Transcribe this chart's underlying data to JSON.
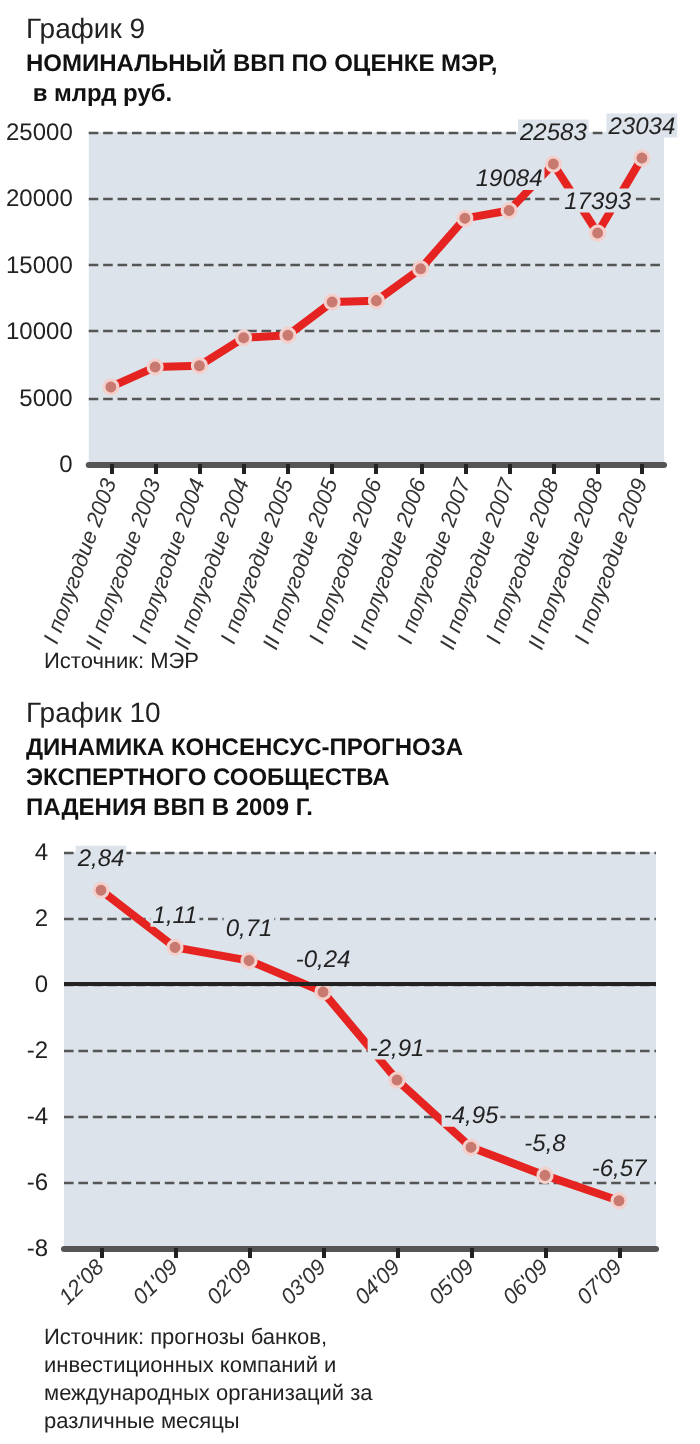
{
  "chart_data": [
    {
      "type": "line",
      "title": "График 9",
      "subtitle": "НОМИНАЛЬНЫЙ ВВП ПО ОЦЕНКЕ МЭР, в млрд руб.",
      "categories": [
        "I полугодие 2003",
        "II полугодие 2003",
        "I полугодие 2004",
        "II полугодие 2004",
        "I полугодие 2005",
        "II полугодие 2005",
        "I полугодие 2006",
        "II полугодие 2006",
        "I полугодие 2007",
        "II полугодие 2007",
        "I полугодие 2008",
        "II полугодие 2008",
        "I полугодие 2009"
      ],
      "series": [
        {
          "color": "#e52421",
          "values": [
            5800,
            7300,
            7400,
            9500,
            9700,
            12200,
            12300,
            14700,
            18500,
            19084,
            22583,
            17393,
            23034
          ],
          "value_labels": [
            null,
            null,
            null,
            null,
            null,
            null,
            null,
            null,
            null,
            "19084",
            "22583",
            "17393",
            "23034"
          ]
        }
      ],
      "ylim": [
        0,
        25000
      ],
      "yticks": [
        0,
        5000,
        10000,
        15000,
        20000,
        25000
      ],
      "grid": "y",
      "marker": "circle",
      "line_style": "solid",
      "annotations": [
        "Источник: МЭР"
      ]
    },
    {
      "type": "line",
      "title": "График 10",
      "subtitle": "ДИНАМИКА КОНСЕНСУС-ПРОГНОЗА ЭКСПЕРТНОГО СООБЩЕСТВА ПАДЕНИЯ ВВП В 2009 Г.",
      "categories": [
        "12'08",
        "01'09",
        "02'09",
        "03'09",
        "04'09",
        "05'09",
        "06'09",
        "07'09"
      ],
      "series": [
        {
          "color": "#e52421",
          "values": [
            2.84,
            1.11,
            0.71,
            -0.24,
            -2.91,
            -4.95,
            -5.8,
            -6.57
          ],
          "value_labels": [
            "2,84",
            "1,11",
            "0,71",
            "-0,24",
            "-2,91",
            "-4,95",
            "-5,8",
            "-6,57"
          ]
        }
      ],
      "ylim": [
        -8,
        4
      ],
      "yticks": [
        -8,
        -6,
        -4,
        -2,
        0,
        2,
        4
      ],
      "grid": "y",
      "marker": "circle",
      "line_style": "solid",
      "ref_lines": [
        {
          "axis": "y",
          "value": 0,
          "color": "#222222",
          "line_style": "solid"
        }
      ],
      "annotations": [
        "Источник: прогнозы банков, инвестиционных компаний и международных организаций за различные месяцы"
      ]
    }
  ]
}
